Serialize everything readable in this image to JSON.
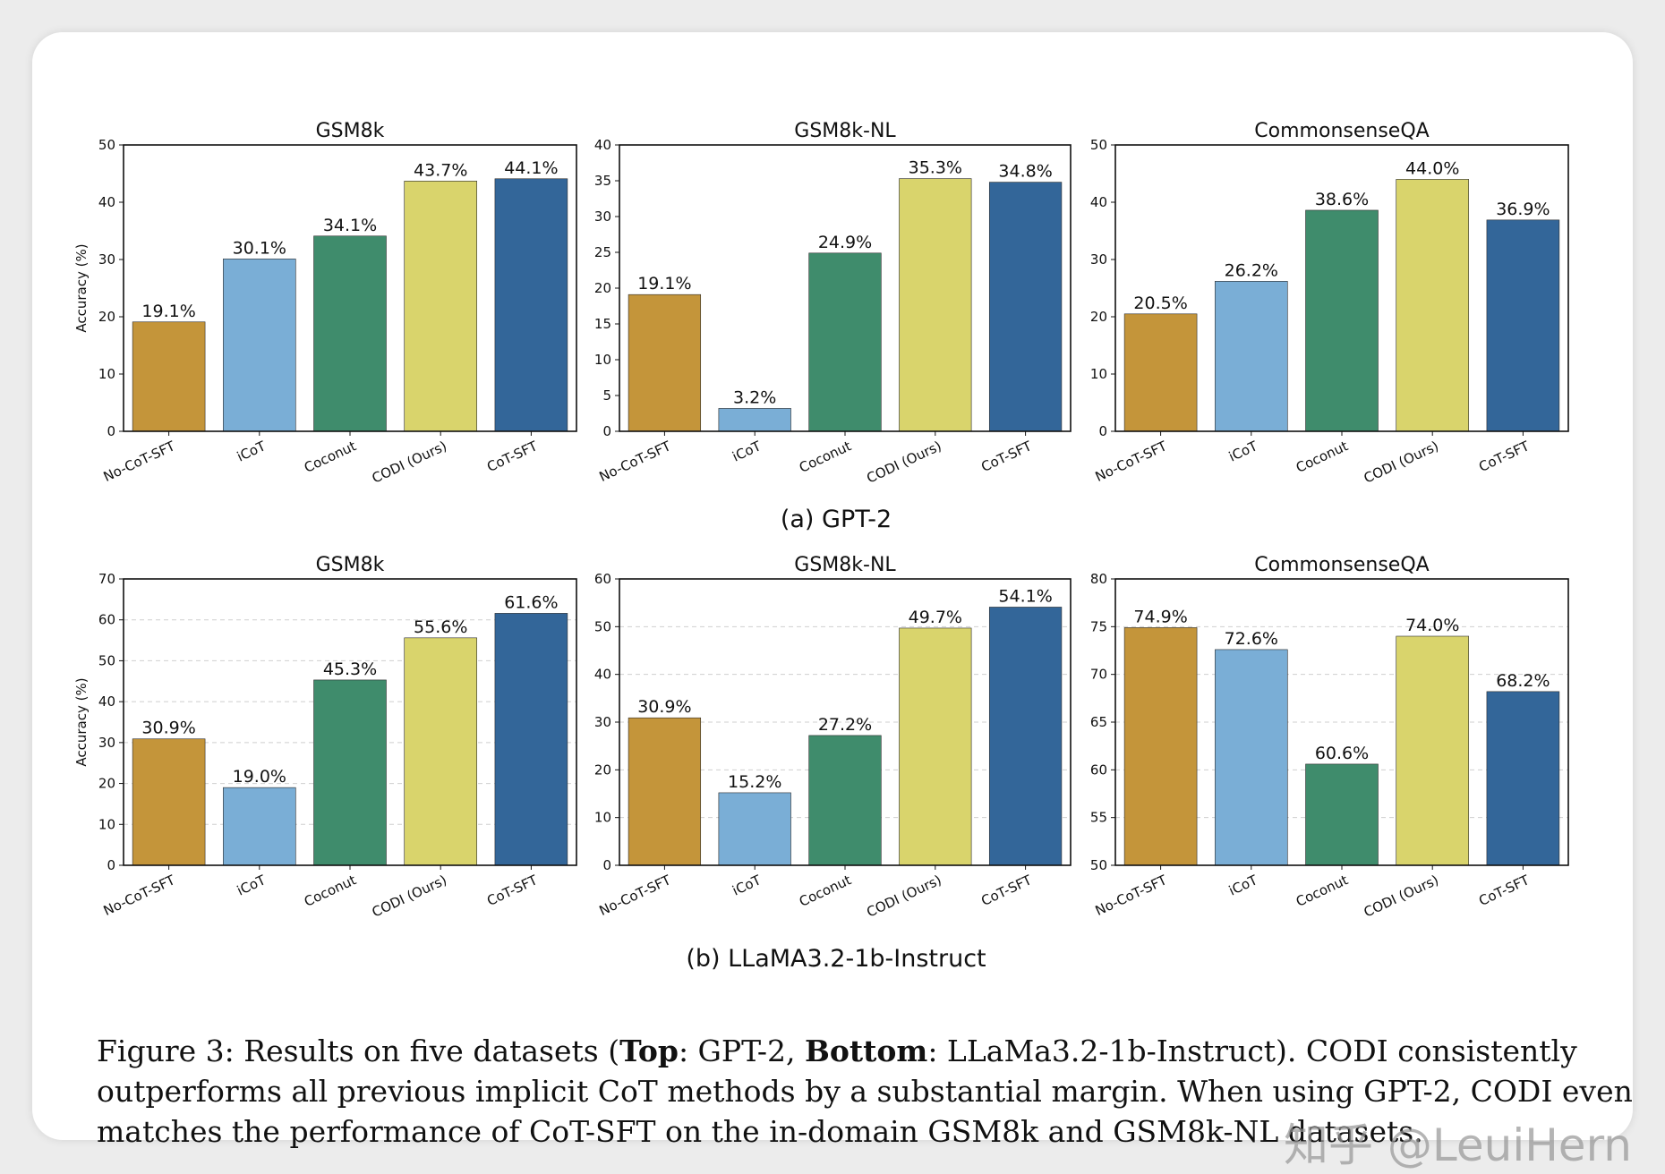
{
  "colors": {
    "no_cot_sft": "#c4953a",
    "icot": "#7aaed6",
    "coconut": "#3f8c6c",
    "codi": "#d9d46c",
    "cot_sft": "#336699"
  },
  "section_labels": {
    "top": "(a) GPT-2",
    "bottom": "(b) LLaMA3.2-1b-Instruct"
  },
  "chart_data": [
    {
      "type": "bar",
      "row": "GPT-2",
      "title": "GSM8k",
      "ylabel": "Accuracy (%)",
      "categories": [
        "No-CoT-SFT",
        "iCoT",
        "Coconut",
        "CODI (Ours)",
        "CoT-SFT"
      ],
      "values": [
        19.1,
        30.1,
        34.1,
        43.7,
        44.1
      ],
      "labels": [
        "19.1%",
        "30.1%",
        "34.1%",
        "43.7%",
        "44.1%"
      ],
      "ylim": [
        0,
        50
      ],
      "yticks": [
        0,
        10,
        20,
        30,
        40,
        50
      ],
      "grid": false
    },
    {
      "type": "bar",
      "row": "GPT-2",
      "title": "GSM8k-NL",
      "ylabel": "",
      "categories": [
        "No-CoT-SFT",
        "iCoT",
        "Coconut",
        "CODI (Ours)",
        "CoT-SFT"
      ],
      "values": [
        19.1,
        3.2,
        24.9,
        35.3,
        34.8
      ],
      "labels": [
        "19.1%",
        "3.2%",
        "24.9%",
        "35.3%",
        "34.8%"
      ],
      "ylim": [
        0,
        40
      ],
      "yticks": [
        0,
        5,
        10,
        15,
        20,
        25,
        30,
        35,
        40
      ],
      "grid": false
    },
    {
      "type": "bar",
      "row": "GPT-2",
      "title": "CommonsenseQA",
      "ylabel": "",
      "categories": [
        "No-CoT-SFT",
        "iCoT",
        "Coconut",
        "CODI (Ours)",
        "CoT-SFT"
      ],
      "values": [
        20.5,
        26.2,
        38.6,
        44.0,
        36.9
      ],
      "labels": [
        "20.5%",
        "26.2%",
        "38.6%",
        "44.0%",
        "36.9%"
      ],
      "ylim": [
        0,
        50
      ],
      "yticks": [
        0,
        10,
        20,
        30,
        40,
        50
      ],
      "grid": false
    },
    {
      "type": "bar",
      "row": "LLaMA3.2-1b-Instruct",
      "title": "GSM8k",
      "ylabel": "Accuracy (%)",
      "categories": [
        "No-CoT-SFT",
        "iCoT",
        "Coconut",
        "CODI (Ours)",
        "CoT-SFT"
      ],
      "values": [
        30.9,
        19.0,
        45.3,
        55.6,
        61.6
      ],
      "labels": [
        "30.9%",
        "19.0%",
        "45.3%",
        "55.6%",
        "61.6%"
      ],
      "ylim": [
        0,
        70
      ],
      "yticks": [
        0,
        10,
        20,
        30,
        40,
        50,
        60,
        70
      ],
      "grid": true
    },
    {
      "type": "bar",
      "row": "LLaMA3.2-1b-Instruct",
      "title": "GSM8k-NL",
      "ylabel": "",
      "categories": [
        "No-CoT-SFT",
        "iCoT",
        "Coconut",
        "CODI (Ours)",
        "CoT-SFT"
      ],
      "values": [
        30.9,
        15.2,
        27.2,
        49.7,
        54.1
      ],
      "labels": [
        "30.9%",
        "15.2%",
        "27.2%",
        "49.7%",
        "54.1%"
      ],
      "ylim": [
        0,
        60
      ],
      "yticks": [
        0,
        10,
        20,
        30,
        40,
        50,
        60
      ],
      "grid": true
    },
    {
      "type": "bar",
      "row": "LLaMA3.2-1b-Instruct",
      "title": "CommonsenseQA",
      "ylabel": "",
      "categories": [
        "No-CoT-SFT",
        "iCoT",
        "Coconut",
        "CODI (Ours)",
        "CoT-SFT"
      ],
      "values": [
        74.9,
        72.6,
        60.6,
        74.0,
        68.2
      ],
      "labels": [
        "74.9%",
        "72.6%",
        "60.6%",
        "74.0%",
        "68.2%"
      ],
      "ylim": [
        50,
        80
      ],
      "yticks": [
        50,
        55,
        60,
        65,
        70,
        75,
        80
      ],
      "grid": true
    }
  ],
  "caption": {
    "prefix": "Figure 3: Results on five datasets (",
    "top_bold": "Top",
    "top_text": ": GPT-2, ",
    "bottom_bold": "Bottom",
    "rest": ": LLaMa3.2-1b-Instruct). CODI consistently outperforms all previous implicit CoT methods by a substantial margin. When using GPT-2, CODI even matches the performance of CoT-SFT on the in-domain GSM8k and GSM8k-NL datasets."
  },
  "watermark": "知乎 @LeuiHern"
}
